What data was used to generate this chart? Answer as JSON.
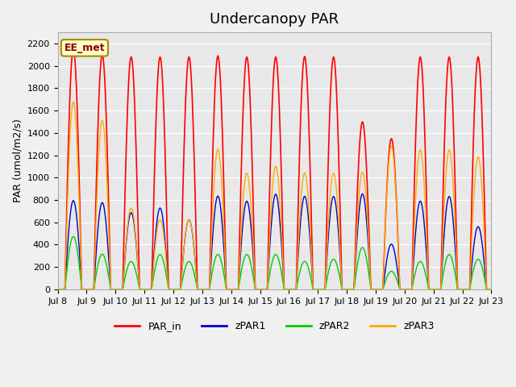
{
  "title": "Undercanopy PAR",
  "ylabel": "PAR (umol/m2/s)",
  "annotation": "EE_met",
  "ylim": [
    0,
    2300
  ],
  "yticks": [
    0,
    200,
    400,
    600,
    800,
    1000,
    1200,
    1400,
    1600,
    1800,
    2000,
    2200
  ],
  "plot_bg_color": "#e8e8e8",
  "fig_bg_color": "#f0f0f0",
  "series": {
    "PAR_in": {
      "color": "#ff0000",
      "linewidth": 1.2
    },
    "zPAR1": {
      "color": "#0000cc",
      "linewidth": 1.0
    },
    "zPAR2": {
      "color": "#00cc00",
      "linewidth": 1.0
    },
    "zPAR3": {
      "color": "#ffaa00",
      "linewidth": 1.0
    }
  },
  "legend_entries": [
    "PAR_in",
    "zPAR1",
    "zPAR2",
    "zPAR3"
  ],
  "legend_colors": [
    "#ff0000",
    "#0000cc",
    "#00cc00",
    "#ffaa00"
  ],
  "xtick_labels": [
    "Jul 8",
    "Jul 9",
    "Jul 10",
    "Jul 11",
    "Jul 12",
    "Jul 13",
    "Jul 14",
    "Jul 15",
    "Jul 16",
    "Jul 17",
    "Jul 18",
    "Jul 19",
    "Jul 20",
    "Jul 21",
    "Jul 22",
    "Jul 23"
  ],
  "total_days": 15,
  "points_per_day": 48,
  "par_in_peaks": [
    2150,
    2100,
    2080,
    2080,
    2080,
    2090,
    2080,
    2080,
    2085,
    2080,
    1500,
    1350,
    2080,
    2080,
    2080
  ],
  "day_fracs_zpar1": [
    0.37,
    0.37,
    0.33,
    0.35,
    0.3,
    0.4,
    0.38,
    0.41,
    0.4,
    0.4,
    0.57,
    0.3,
    0.38,
    0.4,
    0.27
  ],
  "day_fracs_zpar2": [
    0.22,
    0.15,
    0.12,
    0.15,
    0.12,
    0.15,
    0.15,
    0.15,
    0.12,
    0.13,
    0.25,
    0.12,
    0.12,
    0.15,
    0.13
  ],
  "day_fracs_zpar3": [
    0.78,
    0.72,
    0.35,
    0.3,
    0.3,
    0.6,
    0.5,
    0.53,
    0.5,
    0.5,
    0.7,
    0.95,
    0.6,
    0.6,
    0.57
  ],
  "day_start": 0.25,
  "day_end": 0.833
}
